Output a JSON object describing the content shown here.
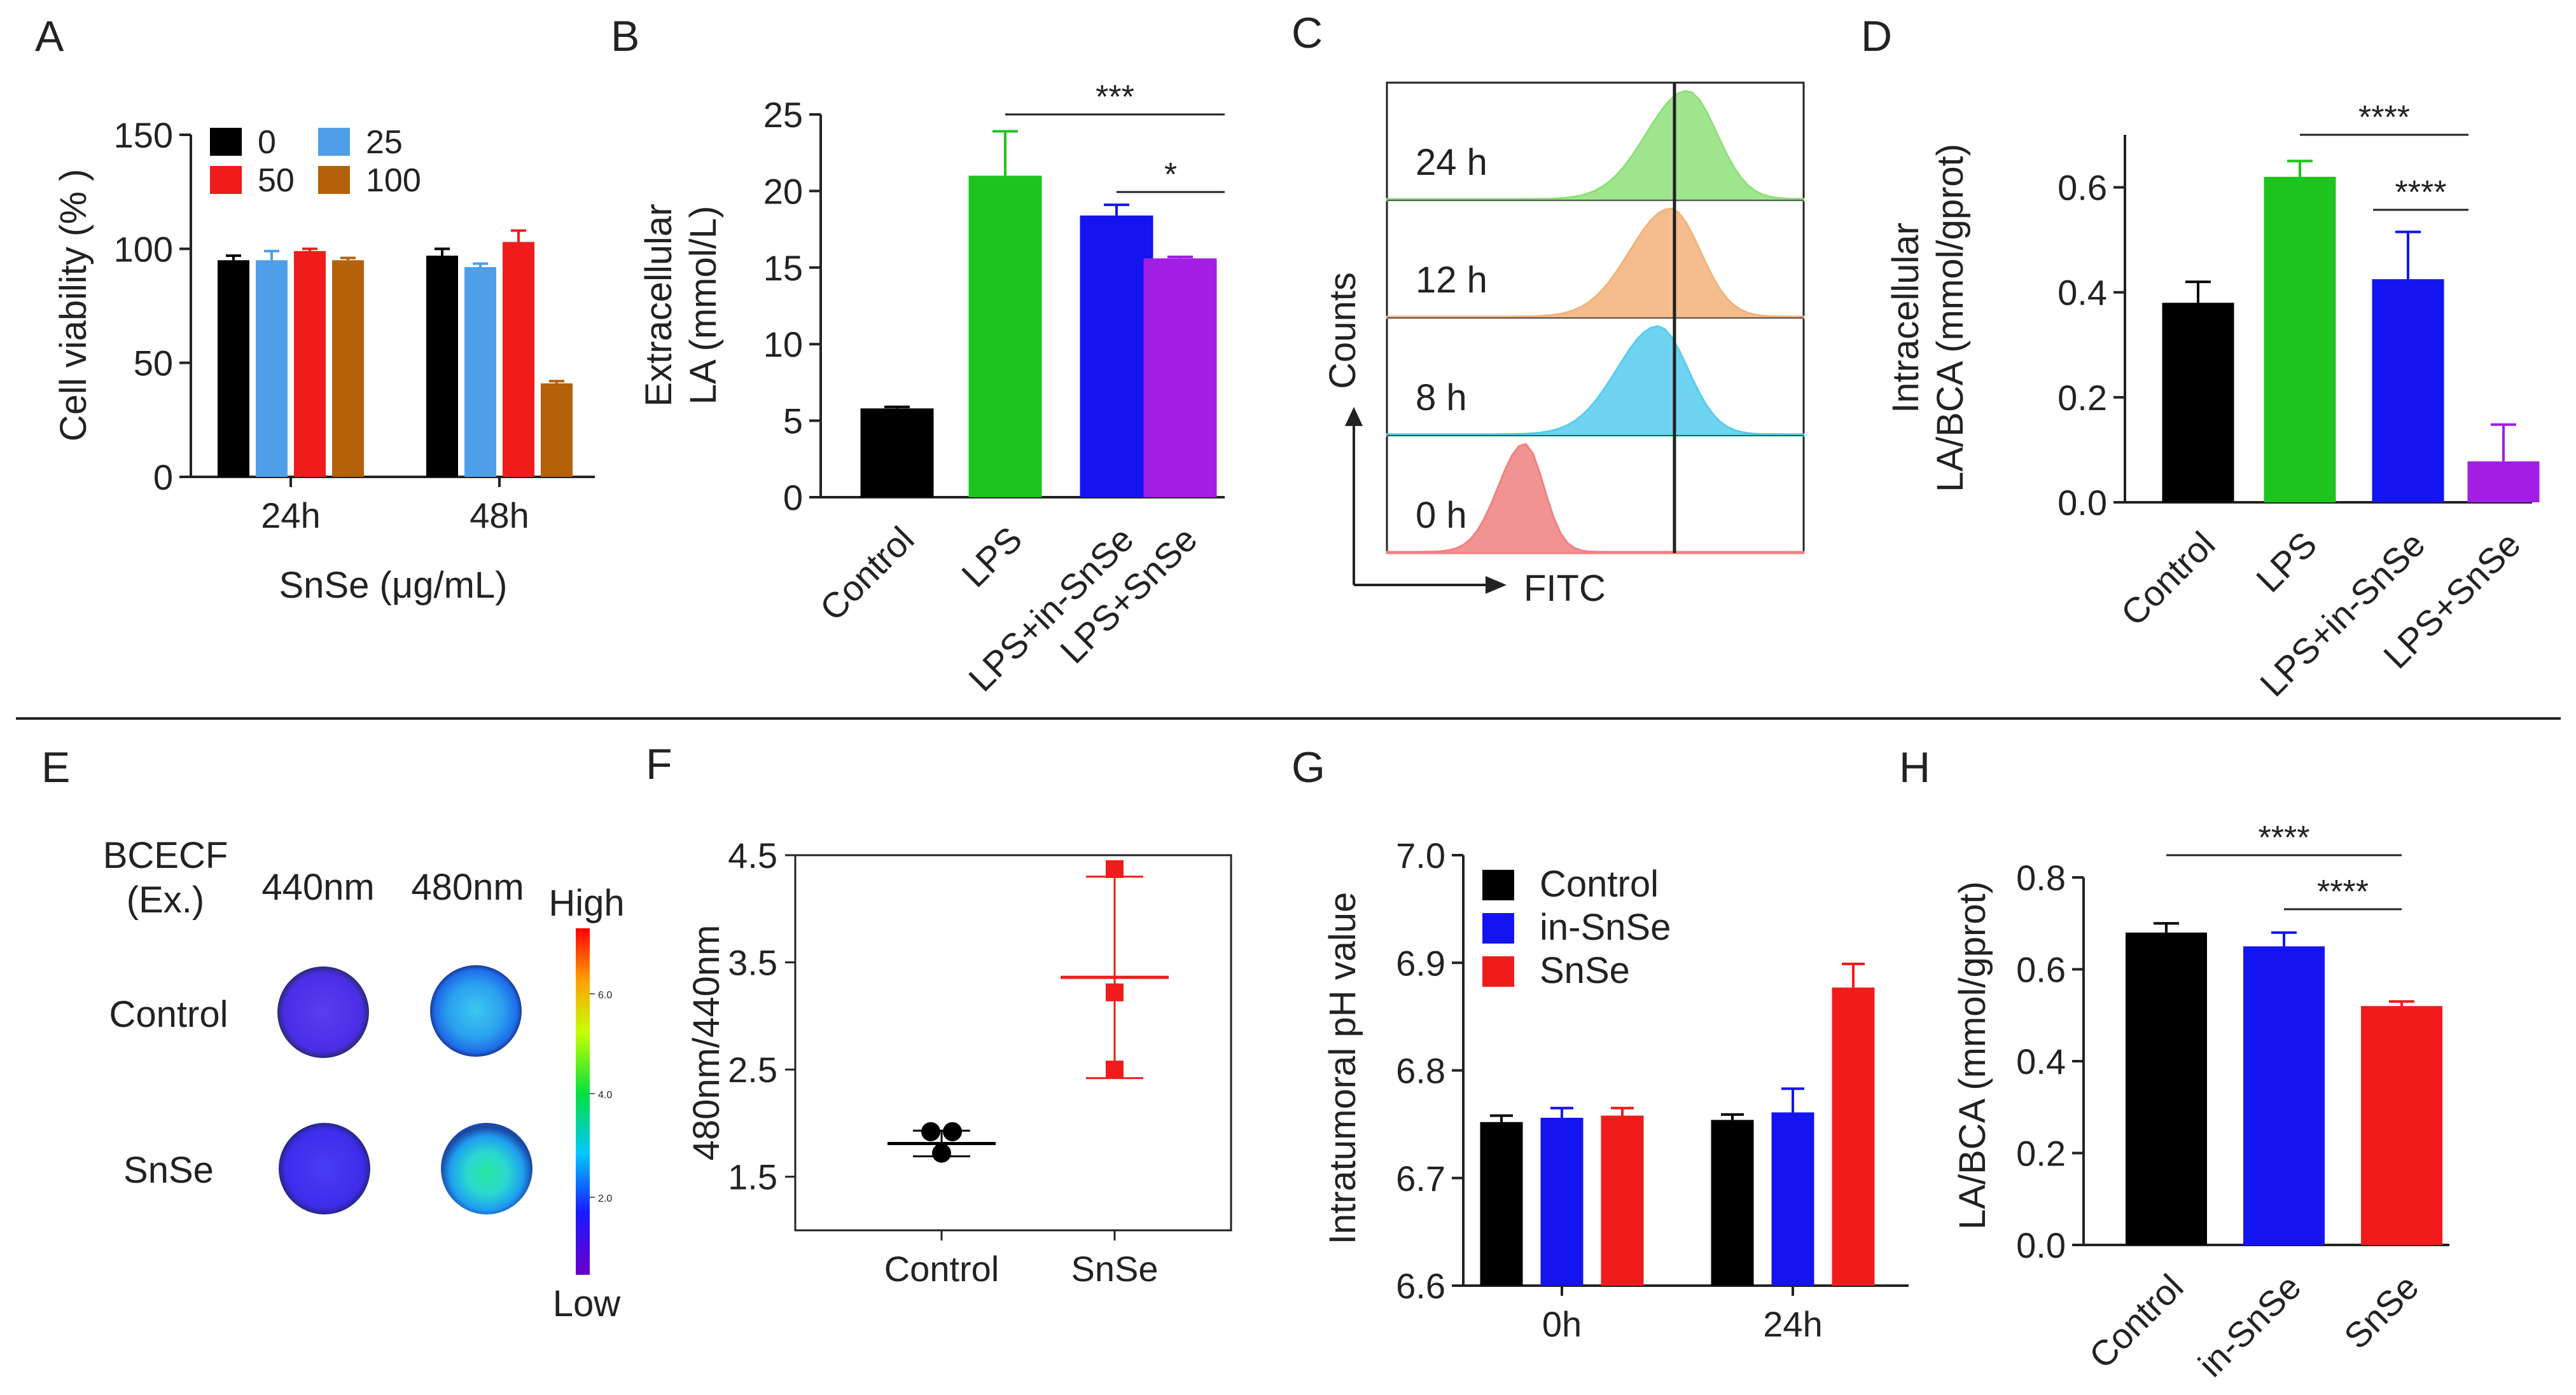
{
  "colors": {
    "black": "#000000",
    "blue_light": "#4f9fe8",
    "red": "#f01c1c",
    "brown": "#b5600a",
    "green": "#1ec41e",
    "blue": "#1414f0",
    "purple": "#a31ee4",
    "hist_green": "#8ee07a",
    "hist_orange": "#f3b27a",
    "hist_cyan": "#56cdee",
    "hist_red": "#f08080"
  },
  "chart_data": [
    {
      "panel": "A",
      "type": "bar",
      "ylabel": "Cell viability (% )",
      "xlabel": "SnSe (μg/mL)",
      "categories": [
        "24h",
        "48h"
      ],
      "ylim": [
        0,
        150
      ],
      "yticks": [
        "0",
        "50",
        "100",
        "150"
      ],
      "legend_position": "top-left",
      "series": [
        {
          "name": "0",
          "color": "#000000",
          "values": [
            95,
            97
          ],
          "errors": [
            2,
            3
          ]
        },
        {
          "name": "25",
          "color": "#4f9fe8",
          "values": [
            95,
            92
          ],
          "errors": [
            4,
            1.5
          ]
        },
        {
          "name": "50",
          "color": "#f01c1c",
          "values": [
            99,
            103
          ],
          "errors": [
            1,
            5
          ]
        },
        {
          "name": "100",
          "color": "#b5600a",
          "values": [
            95,
            41
          ],
          "errors": [
            1,
            1
          ]
        }
      ]
    },
    {
      "panel": "B",
      "type": "bar",
      "ylabel": [
        "Extracellular",
        "LA (mmol/L)"
      ],
      "categories": [
        "Control",
        "LPS",
        "LPS+in-SnSe",
        "LPS+SnSe"
      ],
      "values": [
        5.8,
        21,
        18.4,
        15.6
      ],
      "errors": [
        0.1,
        2.9,
        0.7,
        0.1
      ],
      "colors": [
        "#000000",
        "#1ec41e",
        "#1414f0",
        "#a31ee4"
      ],
      "ylim": [
        0,
        25
      ],
      "yticks": [
        "0",
        "5",
        "10",
        "15",
        "20",
        "25"
      ],
      "significance": [
        {
          "from": 1,
          "to": 3,
          "label": "***"
        },
        {
          "from": 2,
          "to": 3,
          "label": "*"
        }
      ]
    },
    {
      "panel": "C",
      "type": "histogram",
      "ylabel": "Counts",
      "xlabel": "FITC",
      "tracks": [
        {
          "label": "24 h",
          "color": "#8ee07a",
          "peak": 0.72
        },
        {
          "label": "12 h",
          "color": "#f3b27a",
          "peak": 0.68
        },
        {
          "label": "8 h",
          "color": "#56cdee",
          "peak": 0.65
        },
        {
          "label": "0 h",
          "color": "#f08080",
          "peak": 0.33
        }
      ],
      "marker_position": 0.69
    },
    {
      "panel": "D",
      "type": "bar",
      "ylabel": [
        "Intracellular",
        "LA/BCA (mmol/gprot)"
      ],
      "categories": [
        "Control",
        "LPS",
        "LPS+in-SnSe",
        "LPS+SnSe"
      ],
      "values": [
        0.38,
        0.62,
        0.425,
        0.078
      ],
      "errors": [
        0.04,
        0.03,
        0.09,
        0.07
      ],
      "colors": [
        "#000000",
        "#1ec41e",
        "#1414f0",
        "#a31ee4"
      ],
      "ylim": [
        0,
        0.7
      ],
      "yticks": [
        "0.0",
        "0.2",
        "0.4",
        "0.6"
      ],
      "significance": [
        {
          "from": 1,
          "to": 3,
          "label": "****"
        },
        {
          "from": 2,
          "to": 3,
          "label": "****"
        }
      ]
    },
    {
      "panel": "F",
      "type": "scatter",
      "ylabel": "480nm/440nm",
      "categories": [
        "Control",
        "SnSe"
      ],
      "ylim": [
        1.0,
        4.5
      ],
      "yticks": [
        "1.5",
        "2.5",
        "3.5",
        "4.5"
      ],
      "series": [
        {
          "name": "Control",
          "color": "#000000",
          "points": [
            1.92,
            1.92,
            1.72
          ],
          "mean": 1.81,
          "sd": 0.12
        },
        {
          "name": "SnSe",
          "color": "#f01c1c",
          "points": [
            4.37,
            3.22,
            2.5
          ],
          "mean": 3.36,
          "sd": 0.94
        }
      ]
    },
    {
      "panel": "G",
      "type": "bar",
      "ylabel": "Intratumoral pH value",
      "categories": [
        "0h",
        "24h"
      ],
      "ylim": [
        6.6,
        7.0
      ],
      "yticks": [
        "6.6",
        "6.7",
        "6.8",
        "6.9",
        "7.0"
      ],
      "legend_position": "top-left",
      "series": [
        {
          "name": "Control",
          "color": "#000000",
          "values": [
            6.752,
            6.754
          ],
          "errors": [
            0.006,
            0.005
          ]
        },
        {
          "name": "in-SnSe",
          "color": "#1414f0",
          "values": [
            6.756,
            6.761
          ],
          "errors": [
            0.009,
            0.022
          ]
        },
        {
          "name": "SnSe",
          "color": "#f01c1c",
          "values": [
            6.758,
            6.877
          ],
          "errors": [
            0.007,
            0.022
          ]
        }
      ]
    },
    {
      "panel": "H",
      "type": "bar",
      "ylabel": "LA/BCA (mmol/gprot)",
      "categories": [
        "Control",
        "in-SnSe",
        "SnSe"
      ],
      "values": [
        0.68,
        0.65,
        0.52
      ],
      "errors": [
        0.02,
        0.03,
        0.01
      ],
      "colors": [
        "#000000",
        "#1414f0",
        "#f01c1c"
      ],
      "ylim": [
        0,
        0.8
      ],
      "yticks": [
        "0.0",
        "0.2",
        "0.4",
        "0.6",
        "0.8"
      ],
      "significance": [
        {
          "from": 0,
          "to": 2,
          "label": "****"
        },
        {
          "from": 1,
          "to": 2,
          "label": "****"
        }
      ]
    }
  ],
  "panel_e": {
    "row_header": [
      "BCECF",
      "(Ex.)"
    ],
    "columns": [
      "440nm",
      "480nm"
    ],
    "rows": [
      "Control",
      "SnSe"
    ],
    "colorbar_high": "High",
    "colorbar_low": "Low",
    "colorbar_ticks": [
      "6.0",
      "4.0",
      "2.0"
    ]
  },
  "panel_labels": [
    "A",
    "B",
    "C",
    "D",
    "E",
    "F",
    "G",
    "H"
  ]
}
